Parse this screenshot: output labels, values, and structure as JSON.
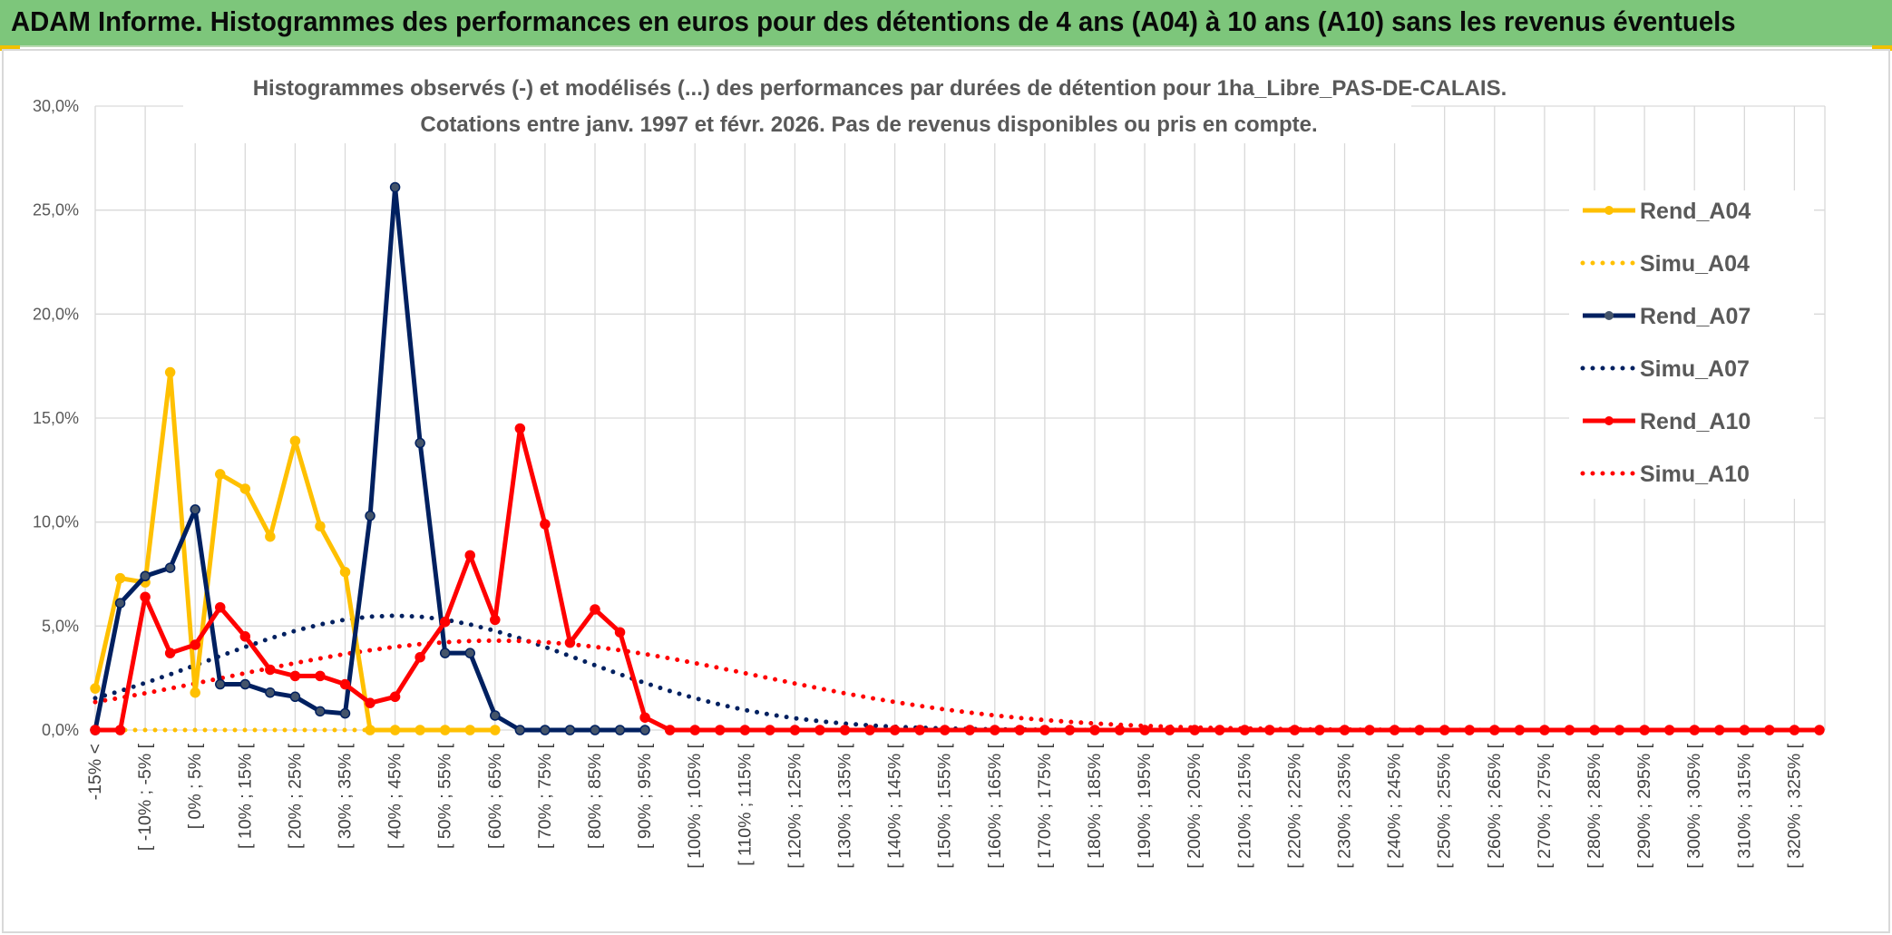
{
  "header": {
    "title": "ADAM Informe. Histogrammes des performances en euros pour des détentions de 4 ans (A04) à 10 ans (A10) sans les revenus éventuels"
  },
  "colors": {
    "header_bg": "#7dc67b",
    "A04": "#FFC000",
    "A07": "#002060",
    "A10": "#FF0000",
    "grid": "#D9D9D9"
  },
  "chart_data": {
    "type": "line",
    "title_lines": [
      "Histogrammes observés (-) et modélisés (...) des performances par durées de détention pour 1ha_Libre_PAS-DE-CALAIS.",
      "Cotations entre janv. 1997 et févr. 2026. Pas de revenus disponibles ou pris en compte."
    ],
    "xlabel": "",
    "ylabel": "",
    "ylim": [
      0,
      30
    ],
    "y_ticks": [
      "0,0%",
      "5,0%",
      "10,0%",
      "15,0%",
      "20,0%",
      "25,0%",
      "30,0%"
    ],
    "x_ticks": [
      "-15% <",
      "[ -10% ; -5% [",
      "[ 0% ; 5% [",
      "[ 10% ; 15% [",
      "[ 20% ; 25% [",
      "[ 30% ; 35% [",
      "[ 40% ; 45% [",
      "[ 50% ; 55% [",
      "[ 60% ; 65% [",
      "[ 70% ; 75% [",
      "[ 80% ; 85% [",
      "[ 90% ; 95% [",
      "[ 100% ; 105% [",
      "[ 110% ; 115% [",
      "[ 120% ; 125% [",
      "[ 130% ; 135% [",
      "[ 140% ; 145% [",
      "[ 150% ; 155% [",
      "[ 160% ; 165% [",
      "[ 170% ; 175% [",
      "[ 180% ; 185% [",
      "[ 190% ; 195% [",
      "[ 200% ; 205% [",
      "[ 210% ; 215% [",
      "[ 220% ; 225% [",
      "[ 230% ; 235% [",
      "[ 240% ; 245% [",
      "[ 250% ; 255% [",
      "[ 260% ; 265% [",
      "[ 270% ; 275% [",
      "[ 280% ; 285% [",
      "[ 290% ; 295% [",
      "[ 300% ; 305% [",
      "[ 310% ; 315% [",
      "[ 320% ; 325% ["
    ],
    "n_categories": 70,
    "grid": true,
    "legend_position": "right",
    "series": [
      {
        "name": "Rend_A04",
        "style": "solid",
        "color": "#FFC000",
        "values": [
          2.0,
          7.3,
          7.1,
          17.2,
          1.8,
          12.3,
          11.6,
          9.3,
          13.9,
          9.8,
          7.6,
          0.0,
          0.0,
          0.0,
          0.0,
          0.0,
          0.0
        ]
      },
      {
        "name": "Simu_A04",
        "style": "dotted",
        "color": "#FFC000",
        "values": [
          0,
          0,
          0,
          0,
          0,
          0,
          0,
          0,
          0,
          0,
          0,
          0,
          0,
          0,
          0,
          0,
          0
        ]
      },
      {
        "name": "Rend_A07",
        "style": "solid",
        "color": "#002060",
        "values": [
          0.0,
          6.1,
          7.4,
          7.8,
          10.6,
          2.2,
          2.2,
          1.8,
          1.6,
          0.9,
          0.8,
          10.3,
          26.1,
          13.8,
          3.7,
          3.7,
          0.7,
          0.0,
          0.0,
          0.0,
          0.0,
          0.0,
          0.0
        ]
      },
      {
        "name": "Simu_A07",
        "style": "dotted",
        "color": "#002060",
        "mean_idx": 12.0,
        "sd_idx": 7.5,
        "peak": 5.5,
        "start_idx": 0,
        "end_idx": 40
      },
      {
        "name": "Rend_A10",
        "style": "solid",
        "color": "#FF0000",
        "values": [
          0.0,
          0.0,
          6.4,
          3.7,
          4.1,
          5.9,
          4.5,
          2.9,
          2.6,
          2.6,
          2.2,
          1.3,
          1.6,
          3.5,
          5.2,
          8.4,
          5.3,
          14.5,
          9.9,
          4.2,
          5.8,
          4.7,
          0.6,
          0.0,
          0.0,
          0.0,
          0.0,
          0.0,
          0.0,
          0.0,
          0.0,
          0.0,
          0.0,
          0.0,
          0.0,
          0.0,
          0.0,
          0.0,
          0.0,
          0.0,
          0.0,
          0.0,
          0.0,
          0.0,
          0.0,
          0.0,
          0.0,
          0.0,
          0.0,
          0.0,
          0.0,
          0.0,
          0.0,
          0.0,
          0.0,
          0.0,
          0.0,
          0.0,
          0.0,
          0.0,
          0.0,
          0.0,
          0.0,
          0.0,
          0.0,
          0.0,
          0.0,
          0.0,
          0.0,
          0.0
        ]
      },
      {
        "name": "Simu_A10",
        "style": "dotted",
        "color": "#FF0000",
        "mean_idx": 16.0,
        "sd_idx": 10.5,
        "peak": 4.3,
        "start_idx": 0,
        "end_idx": 69
      }
    ]
  }
}
